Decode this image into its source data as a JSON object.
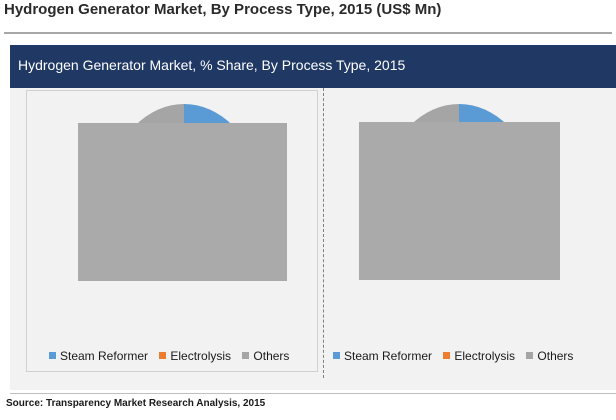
{
  "page": {
    "title": "Hydrogen Generator Market, By Process Type, 2015 (US$ Mn)",
    "source": "Source: Transparency Market Research Analysis, 2015"
  },
  "panel": {
    "header": "Hydrogen Generator Market, % Share, By Process Type, 2015"
  },
  "colors": {
    "header_bg": "#1f3864",
    "steam_reformer": "#5b9bd5",
    "electrolysis": "#ed7d31",
    "others": "#a5a5a5",
    "overlay": "#aaaaaa"
  },
  "chart_data": [
    {
      "type": "pie",
      "categories": [
        "Steam Reformer",
        "Electrolysis",
        "Others"
      ],
      "values": [
        null,
        null,
        null
      ],
      "value_labels_obscured": true,
      "colors": [
        "#5b9bd5",
        "#ed7d31",
        "#a5a5a5"
      ],
      "legend": [
        "Steam Reformer",
        "Electrolysis",
        "Others"
      ],
      "legend_position": "bottom"
    },
    {
      "type": "pie",
      "categories": [
        "Steam Reformer",
        "Electrolysis",
        "Others"
      ],
      "values": [
        null,
        null,
        null
      ],
      "value_labels_obscured": true,
      "colors": [
        "#5b9bd5",
        "#ed7d31",
        "#a5a5a5"
      ],
      "legend": [
        "Steam Reformer",
        "Electrolysis",
        "Others"
      ],
      "legend_position": "bottom"
    }
  ]
}
